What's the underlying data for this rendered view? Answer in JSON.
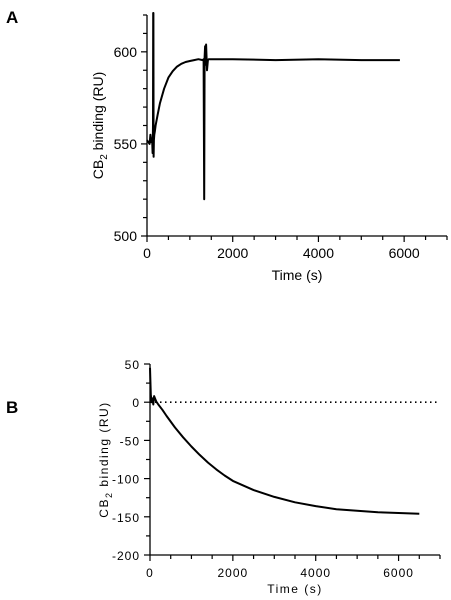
{
  "chart_data": [
    {
      "panel": "A",
      "type": "line",
      "xlabel": "Time (s)",
      "ylabel_main": "CB",
      "ylabel_sub": "2",
      "ylabel_rest": " binding (RU)",
      "xlim": [
        0,
        7000
      ],
      "ylim": [
        500,
        620
      ],
      "xticks": [
        0,
        2000,
        4000,
        6000
      ],
      "xtick_labels": [
        "0",
        "2000",
        "4000",
        "6000"
      ],
      "yticks": [
        500,
        550,
        600
      ],
      "ytick_labels": [
        "500",
        "550",
        "600"
      ],
      "grid": false,
      "series": [
        {
          "x": [
            0,
            60,
            80,
            100,
            120,
            130,
            140,
            145,
            150,
            155,
            160,
            170,
            185,
            200,
            250,
            300,
            400,
            500,
            600,
            700,
            800,
            900,
            1000,
            1100,
            1200,
            1300,
            1320,
            1335,
            1345,
            1355,
            1365,
            1380,
            1400,
            1420,
            1440,
            1500,
            2000,
            3000,
            4000,
            5000,
            5900
          ],
          "y": [
            552,
            550,
            555,
            551,
            553,
            545,
            560,
            640,
            640,
            543,
            552,
            555,
            557,
            560,
            566,
            572,
            580,
            586,
            589.5,
            592,
            593.5,
            594.5,
            595,
            595.5,
            596,
            595.5,
            596,
            520,
            597,
            603,
            593,
            604,
            590,
            595.5,
            596,
            596,
            596,
            595.5,
            596,
            595.5,
            595.5
          ]
        }
      ]
    },
    {
      "panel": "B",
      "type": "line",
      "xlabel": "Time (s)",
      "ylabel_main": "CB",
      "ylabel_sub": "2",
      "ylabel_rest": " binding (RU)",
      "xlim": [
        0,
        7000
      ],
      "ylim": [
        -200,
        50
      ],
      "xticks": [
        0,
        2000,
        4000,
        6000
      ],
      "xtick_labels": [
        "0",
        "2000",
        "4000",
        "6000"
      ],
      "yticks": [
        50,
        0,
        -50,
        -100,
        -150,
        -200
      ],
      "ytick_labels": [
        "50",
        "0",
        "-50",
        "-100",
        "-150",
        "-200"
      ],
      "grid": false,
      "reference_line": {
        "y": 0,
        "style": "dotted"
      },
      "series": [
        {
          "x": [
            0,
            20,
            40,
            60,
            80,
            100,
            150,
            200,
            300,
            400,
            600,
            800,
            1000,
            1200,
            1400,
            1600,
            1800,
            2000,
            2500,
            3000,
            3500,
            4000,
            4500,
            5000,
            5500,
            6000,
            6500
          ],
          "y": [
            45,
            10,
            0,
            5,
            -3,
            8,
            1,
            -3,
            -10,
            -18,
            -33,
            -46,
            -58,
            -69,
            -79,
            -88,
            -96,
            -103,
            -115,
            -124,
            -131,
            -136,
            -140,
            -142,
            -144,
            -145,
            -146
          ]
        }
      ]
    }
  ]
}
